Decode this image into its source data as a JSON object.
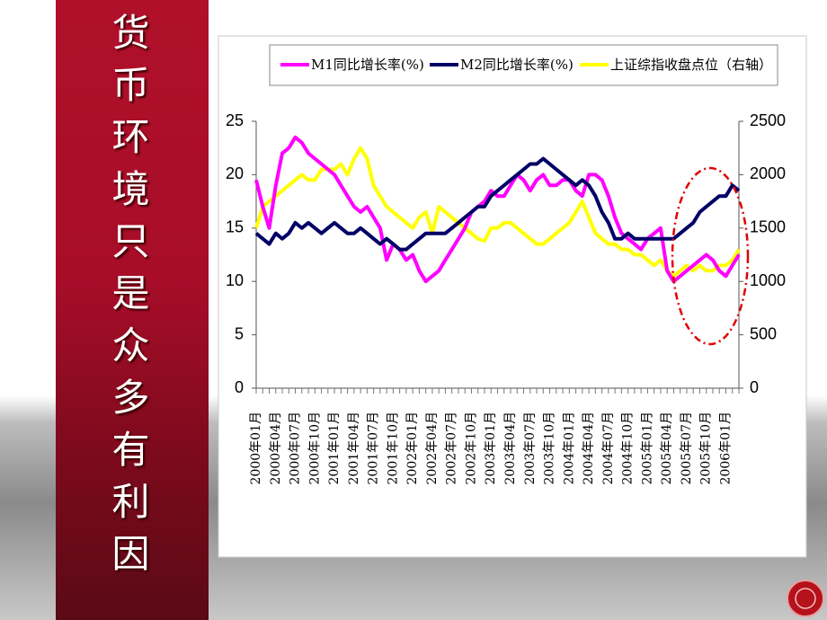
{
  "sidebar": {
    "text": "货币环境只是众多有利因"
  },
  "chart_data": {
    "type": "line",
    "categories": [
      "2000年01月",
      null,
      null,
      "2000年04月",
      null,
      null,
      "2000年07月",
      null,
      null,
      "2000年10月",
      null,
      null,
      "2001年01月",
      null,
      null,
      "2001年04月",
      null,
      null,
      "2001年07月",
      null,
      null,
      "2001年10月",
      null,
      null,
      "2002年01月",
      null,
      null,
      "2002年04月",
      null,
      null,
      "2002年07月",
      null,
      null,
      "2002年10月",
      null,
      null,
      "2003年01月",
      null,
      null,
      "2003年04月",
      null,
      null,
      "2003年07月",
      null,
      null,
      "2003年10月",
      null,
      null,
      "2004年01月",
      null,
      null,
      "2004年04月",
      null,
      null,
      "2004年07月",
      null,
      null,
      "2004年10月",
      null,
      null,
      "2005年01月",
      null,
      null,
      "2005年04月",
      null,
      null,
      "2005年07月",
      null,
      null,
      "2005年10月",
      null,
      null,
      "2006年01月",
      null,
      null
    ],
    "series": [
      {
        "name": "M1同比增长率(%)",
        "color": "#ff00ff",
        "values": [
          19.5,
          17,
          15,
          19,
          22,
          22.5,
          23.5,
          23,
          22,
          21.5,
          21,
          20.5,
          20,
          19,
          18,
          17,
          16.5,
          17,
          16,
          15,
          12,
          13.5,
          13,
          12,
          12.5,
          11,
          10,
          10.5,
          11,
          12,
          13,
          14,
          15,
          16.5,
          17,
          17.5,
          18.5,
          18,
          18,
          19,
          20,
          19.5,
          18.5,
          19.5,
          20,
          19,
          19,
          19.5,
          19.5,
          18.5,
          18,
          20,
          20,
          19.5,
          18,
          16,
          14.5,
          14,
          13.5,
          13,
          14,
          14.5,
          15,
          11,
          10,
          10.5,
          11,
          11.5,
          12,
          12.5,
          12,
          11,
          10.5,
          11.5,
          12.5
        ]
      },
      {
        "name": "M2同比增长率(%)",
        "color": "#000066",
        "values": [
          14.5,
          14,
          13.5,
          14.5,
          14,
          14.5,
          15.5,
          15,
          15.5,
          15,
          14.5,
          15,
          15.5,
          15,
          14.5,
          14.5,
          15,
          14.5,
          14,
          13.5,
          14,
          13.5,
          13,
          13,
          13.5,
          14,
          14.5,
          14.5,
          14.5,
          14.5,
          15,
          15.5,
          16,
          16.5,
          17,
          17,
          18,
          18.5,
          19,
          19.5,
          20,
          20.5,
          21,
          21,
          21.5,
          21,
          20.5,
          20,
          19.5,
          19,
          19.5,
          19,
          18,
          16.5,
          15.5,
          14,
          14,
          14.5,
          14,
          14,
          14,
          14,
          14,
          14,
          14,
          14.5,
          15,
          15.5,
          16.5,
          17,
          17.5,
          18,
          18,
          19,
          18.5
        ]
      },
      {
        "name": "上证综指收盘点位（右轴）",
        "color": "#ffff00",
        "axis": "y2",
        "values": [
          1500,
          1700,
          1750,
          1800,
          1850,
          1900,
          1950,
          2000,
          1950,
          1950,
          2050,
          2050,
          2050,
          2100,
          2000,
          2150,
          2250,
          2150,
          1900,
          1800,
          1700,
          1650,
          1600,
          1550,
          1500,
          1600,
          1650,
          1450,
          1700,
          1650,
          1600,
          1550,
          1500,
          1450,
          1400,
          1380,
          1500,
          1500,
          1550,
          1550,
          1500,
          1450,
          1400,
          1350,
          1350,
          1400,
          1450,
          1500,
          1550,
          1650,
          1750,
          1600,
          1450,
          1400,
          1350,
          1350,
          1300,
          1300,
          1250,
          1250,
          1200,
          1150,
          1200,
          1100,
          1050,
          1100,
          1150,
          1100,
          1150,
          1100,
          1100,
          1150,
          1150,
          1200,
          1300
        ]
      }
    ],
    "ylim": [
      0,
      25
    ],
    "yticks": [
      0,
      5,
      10,
      15,
      20,
      25
    ],
    "y2lim": [
      0,
      2500
    ],
    "y2ticks": [
      0,
      500,
      1000,
      1500,
      2000,
      2500
    ]
  }
}
